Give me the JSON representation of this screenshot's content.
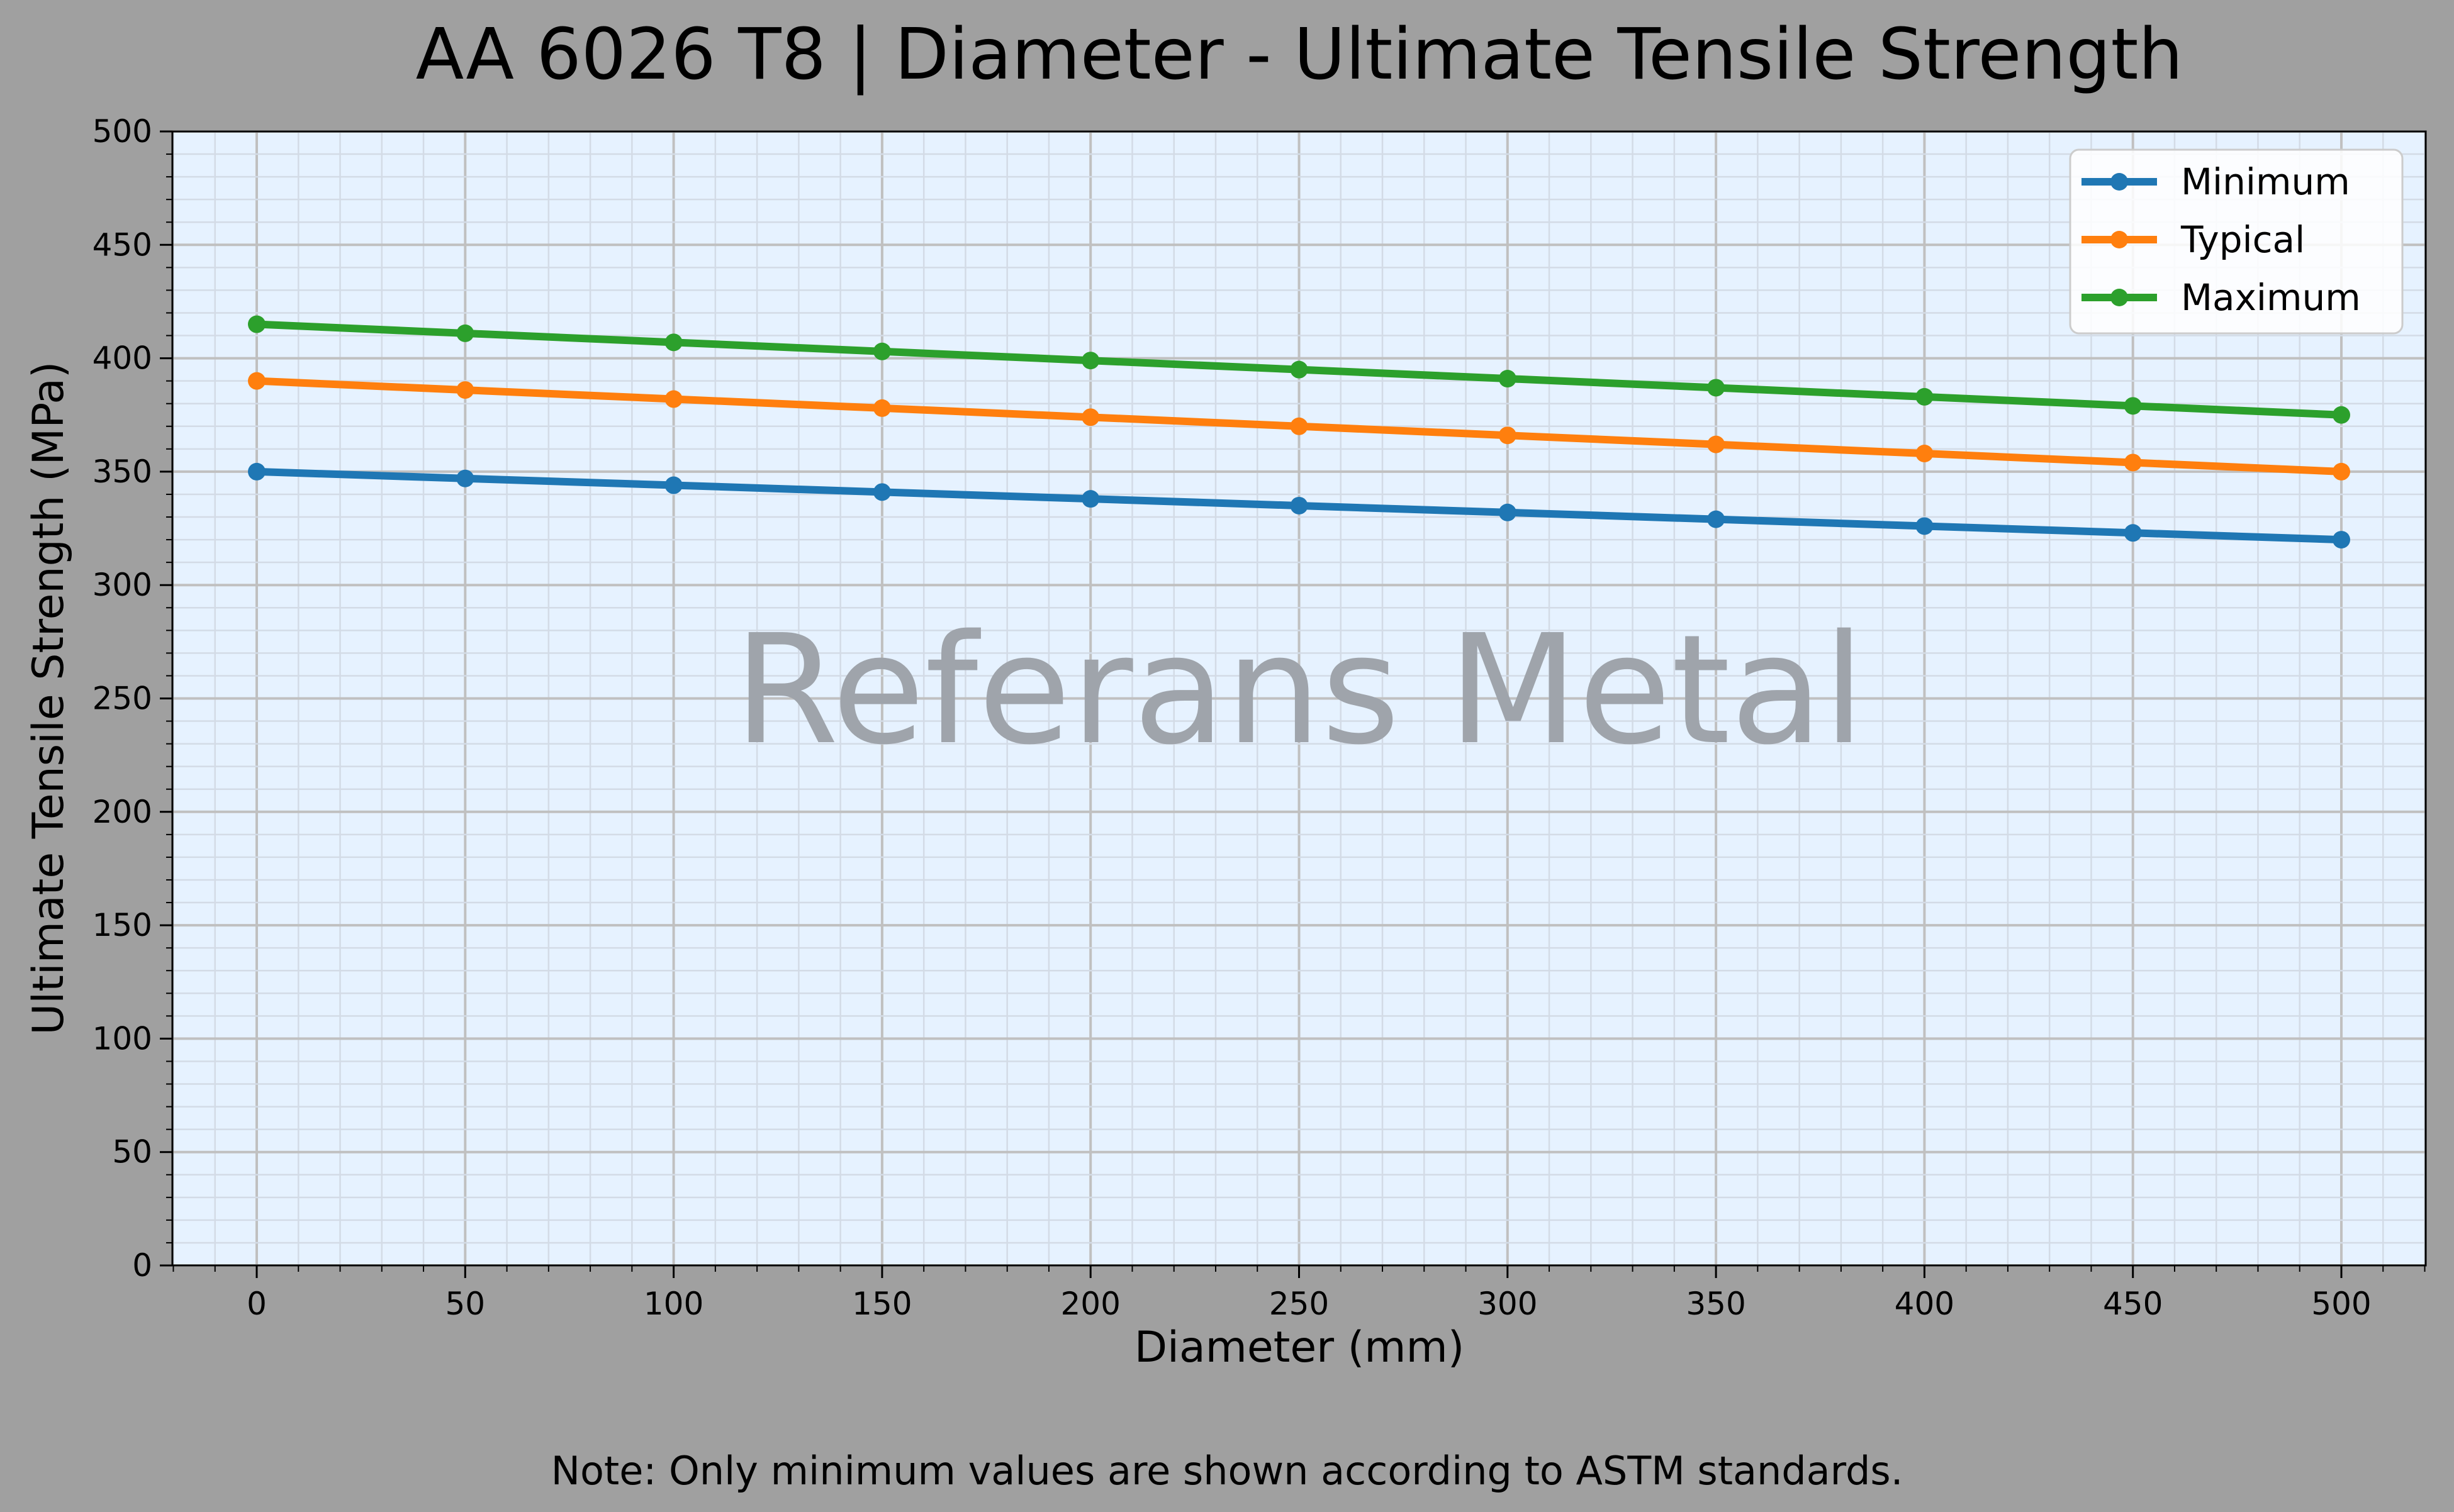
{
  "chart_data": {
    "type": "line",
    "title": "AA 6026 T8 | Diameter - Ultimate Tensile Strength",
    "xlabel": "Diameter (mm)",
    "ylabel": "Ultimate Tensile Strength (MPa)",
    "x": [
      0,
      50,
      100,
      150,
      200,
      250,
      300,
      350,
      400,
      450,
      500
    ],
    "xlim": [
      -20,
      520
    ],
    "ylim": [
      0,
      500
    ],
    "xticks": [
      0,
      50,
      100,
      150,
      200,
      250,
      300,
      350,
      400,
      450,
      500
    ],
    "yticks": [
      0,
      50,
      100,
      150,
      200,
      250,
      300,
      350,
      400,
      450,
      500
    ],
    "grid": true,
    "legend_position": "top-right",
    "series": [
      {
        "name": "Minimum",
        "color": "#1f77b4",
        "values": [
          350,
          347,
          344,
          341,
          338,
          335,
          332,
          329,
          326,
          323,
          320
        ]
      },
      {
        "name": "Typical",
        "color": "#ff7f0e",
        "values": [
          390,
          386,
          382,
          378,
          374,
          370,
          366,
          362,
          358,
          354,
          350
        ]
      },
      {
        "name": "Maximum",
        "color": "#2ca02c",
        "values": [
          415,
          411,
          407,
          403,
          399,
          395,
          391,
          387,
          383,
          379,
          375
        ]
      }
    ],
    "watermark": "Referans Metal",
    "note": "Note: Only minimum values are shown according to ASTM standards."
  }
}
